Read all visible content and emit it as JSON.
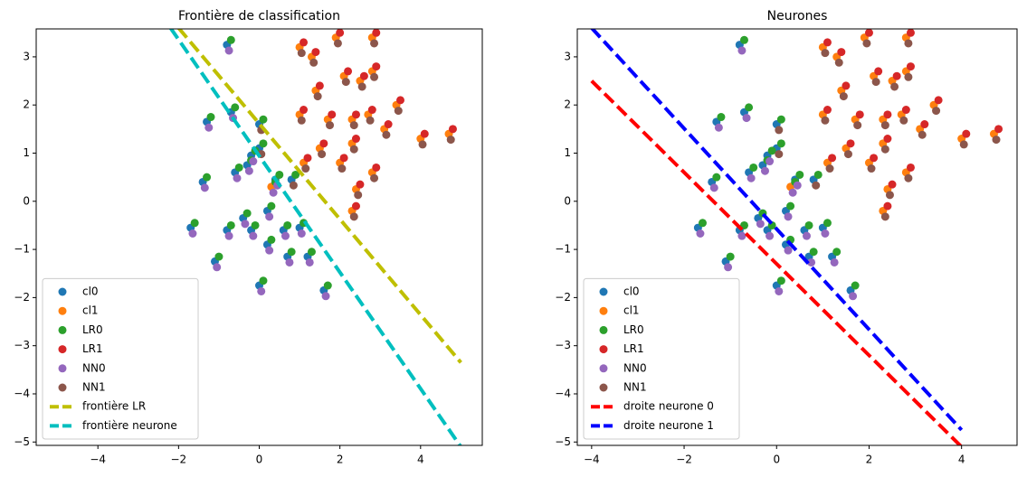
{
  "chart_data": [
    {
      "type": "scatter",
      "title": "Frontière de classification",
      "xlim": [
        -5.53,
        5.53
      ],
      "ylim": [
        -5.07,
        3.58
      ],
      "xticks": [
        {
          "value": -4,
          "label": "−4"
        },
        {
          "value": -2,
          "label": "−2"
        },
        0,
        2,
        4
      ],
      "yticks": [
        {
          "value": -5,
          "label": "−5"
        },
        {
          "value": -4,
          "label": "−4"
        },
        {
          "value": -3,
          "label": "−3"
        },
        {
          "value": -2,
          "label": "−2"
        },
        {
          "value": -1,
          "label": "−1"
        },
        0,
        1,
        2,
        3
      ],
      "legend": "lower left",
      "series": [
        {
          "name": "cl0",
          "color": "#1f77b4",
          "x": [
            -0.8,
            -1.3,
            -0.7,
            0,
            -0.2,
            0,
            -1.4,
            -1.7,
            -0.6,
            -0.3,
            0.4,
            0.8,
            -0.4,
            0.2,
            -1.1,
            0,
            0.7,
            1.2,
            1.6,
            -0.2,
            0.6,
            1.0,
            -0.8,
            0.2
          ],
          "y": [
            3.25,
            1.65,
            1.85,
            1.6,
            0.95,
            1.1,
            0.4,
            -0.55,
            0.6,
            0.75,
            0.45,
            0.45,
            -0.35,
            -0.2,
            -1.25,
            -1.75,
            -1.15,
            -1.15,
            -1.85,
            -0.6,
            -0.6,
            -0.55,
            -0.6,
            -0.9
          ]
        },
        {
          "name": "cl1",
          "color": "#ff7f0e",
          "x": [
            1.0,
            1.3,
            1.9,
            2.8,
            1.4,
            2.1,
            2.5,
            2.8,
            3.4,
            1.7,
            2.3,
            2.7,
            1.0,
            3.1,
            4.0,
            4.7,
            2.3,
            1.1,
            2.0,
            2.8,
            0.3,
            2.4,
            2.3,
            1.5
          ],
          "y": [
            3.2,
            3.0,
            3.4,
            3.4,
            2.3,
            2.6,
            2.5,
            2.7,
            2.0,
            1.7,
            1.7,
            1.8,
            1.8,
            1.5,
            1.3,
            1.4,
            1.2,
            0.8,
            0.8,
            0.6,
            0.3,
            0.25,
            -0.2,
            1.1
          ]
        },
        {
          "name": "LR0",
          "color": "#2ca02c",
          "x": [
            -0.7,
            -1.2,
            -0.6,
            0.1,
            -0.1,
            0.1,
            -1.3,
            -1.6,
            -0.5,
            -0.2,
            0.5,
            0.9,
            -0.3,
            0.3,
            -1.0,
            0.1,
            0.8,
            1.3,
            1.7,
            -0.1,
            0.7,
            1.1,
            -0.7,
            0.3,
            0.4
          ],
          "y": [
            3.35,
            1.75,
            1.95,
            1.7,
            1.05,
            1.2,
            0.5,
            -0.45,
            0.7,
            0.85,
            0.55,
            0.55,
            -0.25,
            -0.1,
            -1.15,
            -1.65,
            -1.05,
            -1.05,
            -1.75,
            -0.5,
            -0.5,
            -0.45,
            -0.5,
            -0.8,
            0.4
          ]
        },
        {
          "name": "LR1",
          "color": "#d62728",
          "x": [
            1.1,
            1.4,
            2.0,
            2.9,
            1.5,
            2.2,
            2.6,
            2.9,
            3.5,
            1.8,
            2.4,
            2.8,
            1.1,
            3.2,
            4.1,
            4.8,
            2.4,
            1.2,
            2.1,
            2.9,
            2.5,
            2.4,
            1.6
          ],
          "y": [
            3.3,
            3.1,
            3.5,
            3.5,
            2.4,
            2.7,
            2.6,
            2.8,
            2.1,
            1.8,
            1.8,
            1.9,
            1.9,
            1.6,
            1.4,
            1.5,
            1.3,
            0.9,
            0.9,
            0.7,
            0.35,
            -0.1,
            1.2
          ]
        },
        {
          "name": "NN0",
          "color": "#9467bd",
          "x": [
            -0.75,
            -1.25,
            -0.65,
            -0.15,
            -1.35,
            -1.65,
            -0.55,
            -0.25,
            0.45,
            -0.35,
            0.25,
            -1.05,
            0.05,
            0.75,
            1.25,
            1.65,
            -0.15,
            0.65,
            1.05,
            -0.75,
            0.25,
            0.35
          ],
          "y": [
            3.13,
            1.53,
            1.73,
            0.83,
            0.28,
            -0.67,
            0.48,
            0.63,
            0.33,
            -0.47,
            -0.32,
            -1.37,
            -1.87,
            -1.27,
            -1.27,
            -1.97,
            -0.72,
            -0.72,
            -0.67,
            -0.72,
            -1.02,
            0.18
          ]
        },
        {
          "name": "NN1",
          "color": "#8c564b",
          "x": [
            1.05,
            1.35,
            1.95,
            2.85,
            1.45,
            2.15,
            2.55,
            2.85,
            3.45,
            1.75,
            2.35,
            2.75,
            1.05,
            3.15,
            4.05,
            4.75,
            2.35,
            1.15,
            2.05,
            2.85,
            2.45,
            2.35,
            1.55,
            0.05,
            0.05,
            0.85
          ],
          "y": [
            3.08,
            2.88,
            3.28,
            3.28,
            2.18,
            2.48,
            2.38,
            2.58,
            1.88,
            1.58,
            1.58,
            1.68,
            1.68,
            1.38,
            1.18,
            1.28,
            1.08,
            0.68,
            0.68,
            0.48,
            0.13,
            -0.32,
            0.98,
            1.48,
            0.98,
            0.33
          ]
        },
        {
          "name": "frontière LR",
          "color": "#bfbf00",
          "mode": "line",
          "style": "dashed",
          "x": [
            -2,
            5
          ],
          "y": [
            3.6,
            -3.35
          ]
        },
        {
          "name": "frontière neurone",
          "color": "#00bfbf",
          "mode": "line",
          "style": "dashed",
          "x": [
            -2.2,
            5
          ],
          "y": [
            3.6,
            -5.1
          ]
        }
      ]
    },
    {
      "type": "scatter",
      "title": "Neurones",
      "xlim": [
        -4.31,
        5.2
      ],
      "ylim": [
        -5.07,
        3.58
      ],
      "xticks": [
        {
          "value": -4,
          "label": "−4"
        },
        {
          "value": -2,
          "label": "−2"
        },
        0,
        2,
        4
      ],
      "yticks": [
        {
          "value": -5,
          "label": "−5"
        },
        {
          "value": -4,
          "label": "−4"
        },
        {
          "value": -3,
          "label": "−3"
        },
        {
          "value": -2,
          "label": "−2"
        },
        {
          "value": -1,
          "label": "−1"
        },
        0,
        1,
        2,
        3
      ],
      "legend": "lower left",
      "series": [
        {
          "name": "cl0",
          "color": "#1f77b4",
          "x": [
            -0.8,
            -1.3,
            -0.7,
            0,
            -0.2,
            0,
            -1.4,
            -1.7,
            -0.6,
            -0.3,
            0.4,
            0.8,
            -0.4,
            0.2,
            -1.1,
            0,
            0.7,
            1.2,
            1.6,
            -0.2,
            0.6,
            1.0,
            -0.8,
            0.2
          ],
          "y": [
            3.25,
            1.65,
            1.85,
            1.6,
            0.95,
            1.1,
            0.4,
            -0.55,
            0.6,
            0.75,
            0.45,
            0.45,
            -0.35,
            -0.2,
            -1.25,
            -1.75,
            -1.15,
            -1.15,
            -1.85,
            -0.6,
            -0.6,
            -0.55,
            -0.6,
            -0.9
          ]
        },
        {
          "name": "cl1",
          "color": "#ff7f0e",
          "x": [
            1.0,
            1.3,
            1.9,
            2.8,
            1.4,
            2.1,
            2.5,
            2.8,
            3.4,
            1.7,
            2.3,
            2.7,
            1.0,
            3.1,
            4.0,
            4.7,
            2.3,
            1.1,
            2.0,
            2.8,
            0.3,
            2.4,
            2.3,
            1.5
          ],
          "y": [
            3.2,
            3.0,
            3.4,
            3.4,
            2.3,
            2.6,
            2.5,
            2.7,
            2.0,
            1.7,
            1.7,
            1.8,
            1.8,
            1.5,
            1.3,
            1.4,
            1.2,
            0.8,
            0.8,
            0.6,
            0.3,
            0.25,
            -0.2,
            1.1
          ]
        },
        {
          "name": "LR0",
          "color": "#2ca02c",
          "x": [
            -0.7,
            -1.2,
            -0.6,
            0.1,
            -0.1,
            0.1,
            -1.3,
            -1.6,
            -0.5,
            -0.2,
            0.5,
            0.9,
            -0.3,
            0.3,
            -1.0,
            0.1,
            0.8,
            1.3,
            1.7,
            -0.1,
            0.7,
            1.1,
            -0.7,
            0.3,
            0.4
          ],
          "y": [
            3.35,
            1.75,
            1.95,
            1.7,
            1.05,
            1.2,
            0.5,
            -0.45,
            0.7,
            0.85,
            0.55,
            0.55,
            -0.25,
            -0.1,
            -1.15,
            -1.65,
            -1.05,
            -1.05,
            -1.75,
            -0.5,
            -0.5,
            -0.45,
            -0.5,
            -0.8,
            0.4
          ]
        },
        {
          "name": "LR1",
          "color": "#d62728",
          "x": [
            1.1,
            1.4,
            2.0,
            2.9,
            1.5,
            2.2,
            2.6,
            2.9,
            3.5,
            1.8,
            2.4,
            2.8,
            1.1,
            3.2,
            4.1,
            4.8,
            2.4,
            1.2,
            2.1,
            2.9,
            2.5,
            2.4,
            1.6
          ],
          "y": [
            3.3,
            3.1,
            3.5,
            3.5,
            2.4,
            2.7,
            2.6,
            2.8,
            2.1,
            1.8,
            1.8,
            1.9,
            1.9,
            1.6,
            1.4,
            1.5,
            1.3,
            0.9,
            0.9,
            0.7,
            0.35,
            -0.1,
            1.2
          ]
        },
        {
          "name": "NN0",
          "color": "#9467bd",
          "x": [
            -0.75,
            -1.25,
            -0.65,
            -0.15,
            -1.35,
            -1.65,
            -0.55,
            -0.25,
            0.45,
            -0.35,
            0.25,
            -1.05,
            0.05,
            0.75,
            1.25,
            1.65,
            -0.15,
            0.65,
            1.05,
            -0.75,
            0.25,
            0.35
          ],
          "y": [
            3.13,
            1.53,
            1.73,
            0.83,
            0.28,
            -0.67,
            0.48,
            0.63,
            0.33,
            -0.47,
            -0.32,
            -1.37,
            -1.87,
            -1.27,
            -1.27,
            -1.97,
            -0.72,
            -0.72,
            -0.67,
            -0.72,
            -1.02,
            0.18
          ]
        },
        {
          "name": "NN1",
          "color": "#8c564b",
          "x": [
            1.05,
            1.35,
            1.95,
            2.85,
            1.45,
            2.15,
            2.55,
            2.85,
            3.45,
            1.75,
            2.35,
            2.75,
            1.05,
            3.15,
            4.05,
            4.75,
            2.35,
            1.15,
            2.05,
            2.85,
            2.45,
            2.35,
            1.55,
            0.05,
            0.05,
            0.85
          ],
          "y": [
            3.08,
            2.88,
            3.28,
            3.28,
            2.18,
            2.48,
            2.38,
            2.58,
            1.88,
            1.58,
            1.58,
            1.68,
            1.68,
            1.38,
            1.18,
            1.28,
            1.08,
            0.68,
            0.68,
            0.48,
            0.13,
            -0.32,
            0.98,
            1.48,
            0.98,
            0.33
          ]
        },
        {
          "name": "droite neurone 0",
          "color": "#ff0000",
          "mode": "line",
          "style": "dashed",
          "x": [
            -4,
            4
          ],
          "y": [
            2.5,
            -5.1
          ]
        },
        {
          "name": "droite neurone 1",
          "color": "#0000ff",
          "mode": "line",
          "style": "dashed",
          "x": [
            -4,
            4
          ],
          "y": [
            3.6,
            -4.75
          ]
        }
      ]
    }
  ]
}
